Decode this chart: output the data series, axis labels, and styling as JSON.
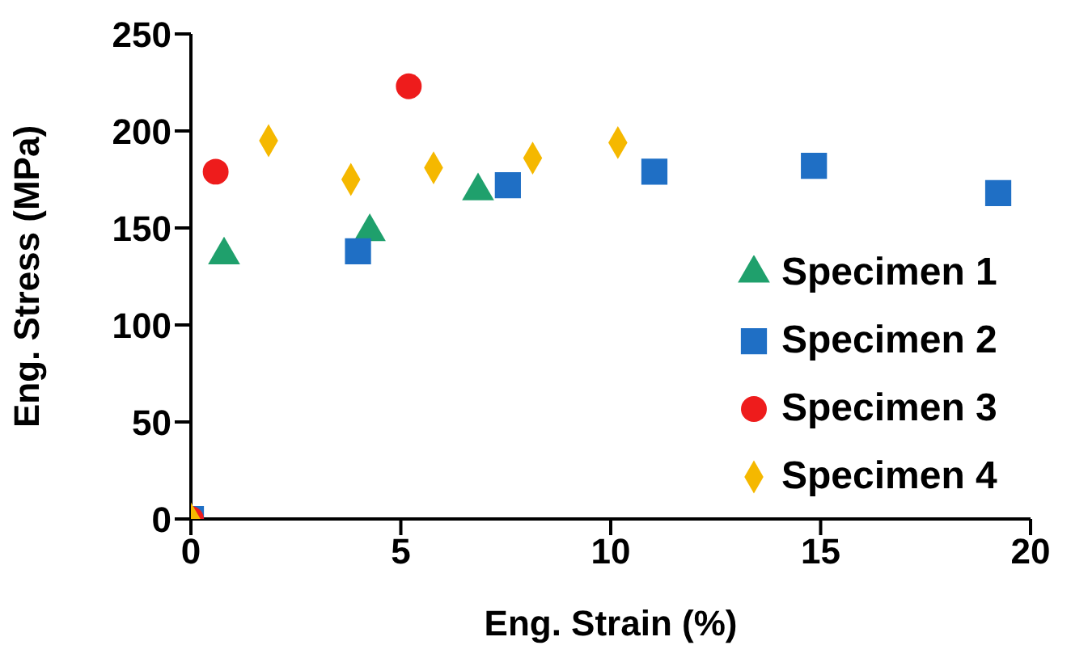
{
  "chart_data": {
    "type": "scatter",
    "xlabel": "Eng. Strain (%)",
    "ylabel": "Eng. Stress (MPa)",
    "xlim": [
      0,
      20
    ],
    "xticks": [
      0,
      5,
      10,
      15,
      20
    ],
    "ylim": [
      0,
      250
    ],
    "yticks": [
      0,
      50,
      100,
      150,
      200,
      250
    ],
    "legend": "right",
    "series": [
      {
        "name": "Specimen 1",
        "color": "#1fa06c",
        "marker": "triangle",
        "x": [
          0.79,
          4.26,
          6.84
        ],
        "values": [
          136,
          148,
          169
        ]
      },
      {
        "name": "Specimen 2",
        "color": "#1f6fc5",
        "marker": "square",
        "x": [
          0,
          3.98,
          7.55,
          11.04,
          14.84,
          19.23
        ],
        "values": [
          0,
          138,
          172,
          179,
          182,
          168
        ]
      },
      {
        "name": "Specimen 3",
        "color": "#ee1c1c",
        "marker": "circle",
        "x": [
          0,
          0.59,
          5.19
        ],
        "values": [
          0,
          179,
          223
        ]
      },
      {
        "name": "Specimen 4",
        "color": "#f5b800",
        "marker": "diamond",
        "x": [
          0,
          1.85,
          3.81,
          5.78,
          8.14,
          10.17
        ],
        "values": [
          0,
          195,
          175,
          181,
          186,
          194
        ]
      }
    ]
  }
}
